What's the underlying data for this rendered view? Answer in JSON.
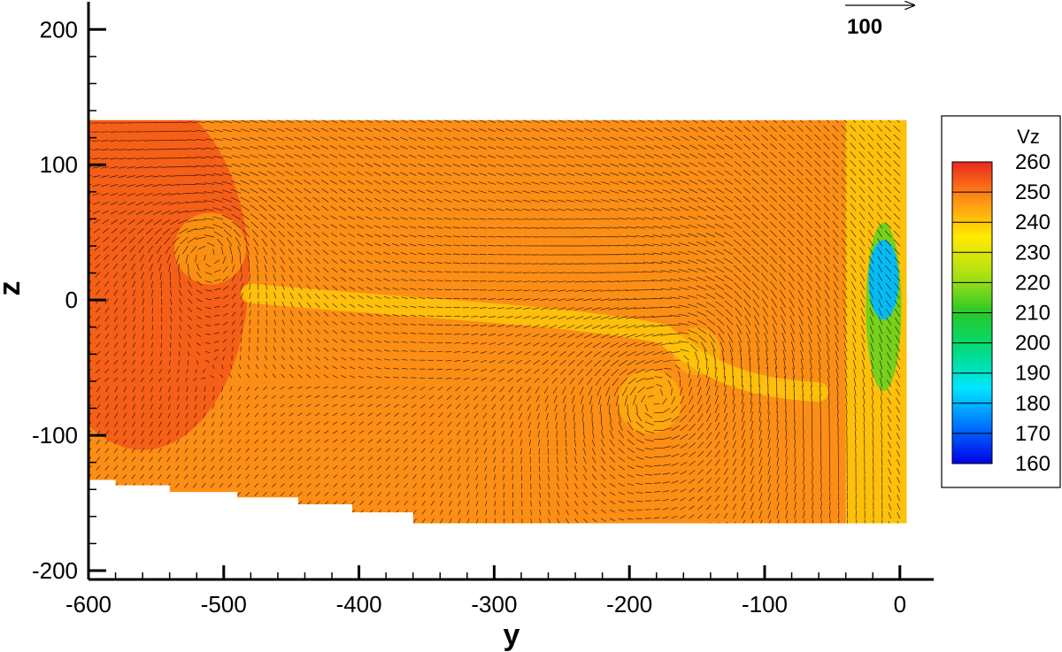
{
  "chart_data": {
    "type": "heatmap",
    "title": "",
    "xlabel": "y",
    "ylabel": "z",
    "xlim": [
      -600,
      25
    ],
    "ylim": [
      -200,
      210
    ],
    "xticks": [
      -600,
      -500,
      -400,
      -300,
      -200,
      -100,
      0
    ],
    "yticks": [
      -200,
      -100,
      0,
      100,
      200
    ],
    "xtick_labels": [
      "-600",
      "-500",
      "-400",
      "-300",
      "-200",
      "-100",
      "0"
    ],
    "ytick_labels": [
      "-200",
      "-100",
      "0",
      "100",
      "200"
    ],
    "field_extent": {
      "y": [
        -600,
        5
      ],
      "z_top": 133
    },
    "lower_boundary_steps": [
      {
        "y0": -600,
        "y1": -580,
        "z": -133
      },
      {
        "y0": -580,
        "y1": -540,
        "z": -137
      },
      {
        "y0": -540,
        "y1": -490,
        "z": -142
      },
      {
        "y0": -490,
        "y1": -445,
        "z": -146
      },
      {
        "y0": -445,
        "y1": -405,
        "z": -151
      },
      {
        "y0": -405,
        "y1": -360,
        "z": -157
      },
      {
        "y0": -360,
        "y1": 5,
        "z": -165
      }
    ],
    "colorbar": {
      "title": "Vz",
      "levels": [
        260,
        250,
        240,
        230,
        220,
        210,
        200,
        190,
        180,
        170,
        160
      ],
      "labels": [
        "260",
        "250",
        "240",
        "230",
        "220",
        "210",
        "200",
        "190",
        "180",
        "170",
        "160"
      ],
      "min": 160,
      "max": 260
    },
    "background_vz": 248,
    "features": [
      {
        "kind": "vortex",
        "center_y": -510,
        "center_z": 38,
        "radius": 45
      },
      {
        "kind": "vortex",
        "center_y": -185,
        "center_z": -75,
        "radius": 40
      },
      {
        "kind": "vortex",
        "center_y": -150,
        "center_z": -38,
        "radius": 30
      },
      {
        "kind": "low_vz_region",
        "center_y": -12,
        "center_z": 15,
        "vz": 180
      },
      {
        "kind": "shear_band",
        "from_y": -480,
        "to_y": -60,
        "vz": 240
      }
    ],
    "reference_vector": {
      "label": "100",
      "magnitude": 100
    },
    "grid": false,
    "legend_position": "right"
  }
}
